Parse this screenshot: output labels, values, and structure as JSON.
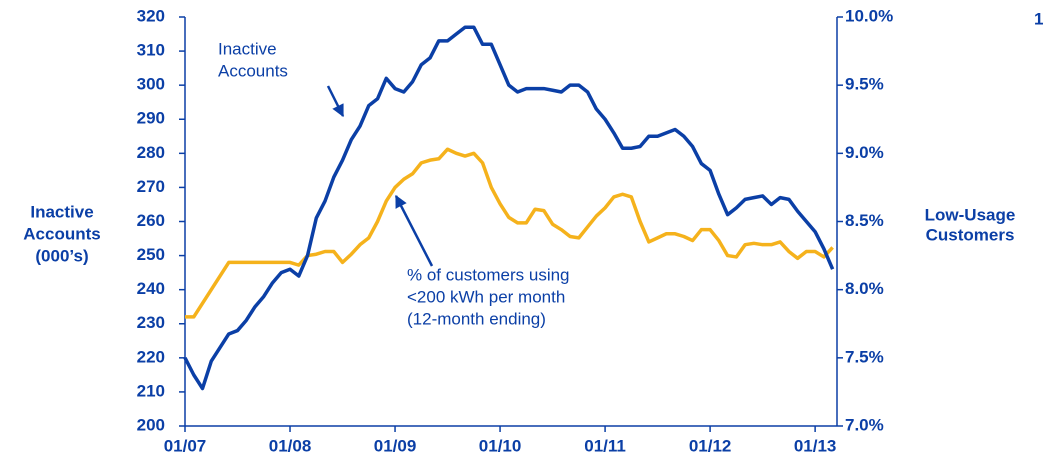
{
  "chart_data": {
    "type": "line",
    "x": [
      0,
      1,
      2,
      3,
      4,
      5,
      6,
      7,
      8,
      9,
      10,
      11,
      12,
      13,
      14,
      15,
      16,
      17,
      18,
      19,
      20,
      21,
      22,
      23,
      24,
      25,
      26,
      27,
      28,
      29,
      30,
      31,
      32,
      33,
      34,
      35,
      36,
      37,
      38,
      39,
      40,
      41,
      42,
      43,
      44,
      45,
      46,
      47,
      48,
      49,
      50,
      51,
      52,
      53,
      54,
      55,
      56,
      57,
      58,
      59,
      60,
      61,
      62,
      63,
      64,
      65,
      66,
      67,
      68,
      69,
      70,
      71,
      72,
      73,
      74
    ],
    "xlim": [
      0,
      74.5
    ],
    "xticks": [
      {
        "value": 0,
        "label": "01/07"
      },
      {
        "value": 12,
        "label": "01/08"
      },
      {
        "value": 24,
        "label": "01/09"
      },
      {
        "value": 36,
        "label": "01/10"
      },
      {
        "value": 48,
        "label": "01/11"
      },
      {
        "value": 60,
        "label": "01/12"
      },
      {
        "value": 72,
        "label": "01/13"
      }
    ],
    "ylim": [
      200,
      320
    ],
    "yticks": [
      200,
      210,
      220,
      230,
      240,
      250,
      260,
      270,
      280,
      290,
      300,
      310,
      320
    ],
    "y2lim": [
      7,
      10
    ],
    "y2ticks": [
      {
        "value": 7,
        "label": "7.0%"
      },
      {
        "value": 7.5,
        "label": "7.5%"
      },
      {
        "value": 8,
        "label": "8.0%"
      },
      {
        "value": 8.5,
        "label": "8.5%"
      },
      {
        "value": 9,
        "label": "9.0%"
      },
      {
        "value": 9.5,
        "label": "9.5%"
      },
      {
        "value": 10,
        "label": "10.0%"
      }
    ],
    "y_label": [
      "Inactive",
      "Accounts",
      "(000’s)"
    ],
    "y2_label": [
      "Low-Usage",
      "Customers"
    ],
    "corner_text": "1",
    "annotations": [
      [
        "Inactive",
        "Accounts"
      ],
      [
        "% of customers using",
        "<200 kWh per month",
        "(12-month ending)"
      ]
    ],
    "series": [
      {
        "color": "#0b3fa6",
        "values": [
          220,
          215,
          211,
          219,
          223,
          227,
          228,
          231,
          235,
          238,
          242,
          245,
          246,
          244,
          250,
          261,
          266,
          273,
          278,
          284,
          288,
          294,
          296,
          302,
          299,
          298,
          301,
          306,
          308,
          313,
          313,
          315,
          317,
          317,
          312,
          312,
          306,
          300,
          298,
          299,
          299,
          299,
          298.5,
          298,
          300,
          300,
          298,
          293,
          290,
          286,
          281.5,
          281.5,
          282,
          285,
          285,
          286,
          287,
          285,
          282,
          277,
          275,
          268,
          262,
          264,
          266.5,
          267,
          267.5,
          265,
          267,
          266.5,
          263,
          260,
          257,
          252,
          246
        ]
      },
      {
        "color": "#f5b21c",
        "axis": "y2",
        "values": [
          7.8,
          7.8,
          7.9,
          8.0,
          8.1,
          8.2,
          8.2,
          8.2,
          8.2,
          8.2,
          8.2,
          8.2,
          8.2,
          8.18,
          8.25,
          8.26,
          8.28,
          8.28,
          8.2,
          8.26,
          8.33,
          8.38,
          8.5,
          8.65,
          8.75,
          8.81,
          8.85,
          8.93,
          8.95,
          8.96,
          9.03,
          9.0,
          8.98,
          9.0,
          8.93,
          8.75,
          8.63,
          8.53,
          8.49,
          8.49,
          8.59,
          8.58,
          8.48,
          8.44,
          8.39,
          8.38,
          8.46,
          8.54,
          8.6,
          8.68,
          8.7,
          8.68,
          8.5,
          8.35,
          8.38,
          8.41,
          8.41,
          8.39,
          8.36,
          8.44,
          8.44,
          8.36,
          8.25,
          8.24,
          8.33,
          8.34,
          8.33,
          8.33,
          8.35,
          8.28,
          8.23,
          8.28,
          8.28,
          8.24,
          8.31
        ]
      }
    ]
  }
}
